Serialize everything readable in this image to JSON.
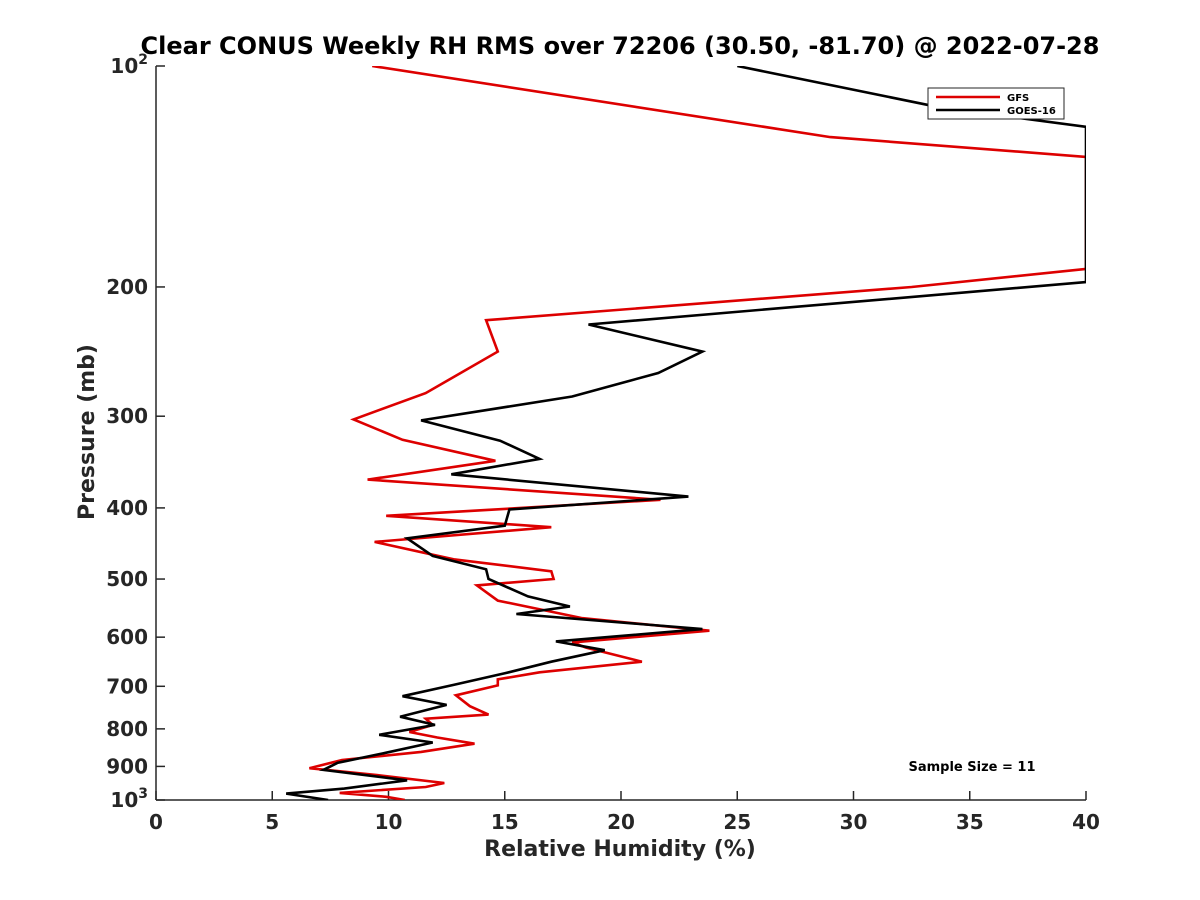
{
  "chart_data": {
    "type": "line",
    "title": "Clear CONUS Weekly RH RMS over 72206 (30.50, -81.70) @ 2022-07-28",
    "xlabel": "Relative Humidity (%)",
    "ylabel": "Pressure (mb)",
    "xlim": [
      0,
      40
    ],
    "ylim": [
      100,
      1000
    ],
    "yscale": "log",
    "y_reversed": true,
    "x_ticks": [
      0,
      5,
      10,
      15,
      20,
      25,
      30,
      35,
      40
    ],
    "x_tick_labels": [
      "0",
      "5",
      "10",
      "15",
      "20",
      "25",
      "30",
      "35",
      "40"
    ],
    "y_ticks": [
      100,
      200,
      300,
      400,
      500,
      600,
      700,
      800,
      900,
      1000
    ],
    "y_tick_labels": [
      {
        "base": "10",
        "exp": "2"
      },
      {
        "base": "200",
        "exp": ""
      },
      {
        "base": "300",
        "exp": ""
      },
      {
        "base": "400",
        "exp": ""
      },
      {
        "base": "500",
        "exp": ""
      },
      {
        "base": "600",
        "exp": ""
      },
      {
        "base": "700",
        "exp": ""
      },
      {
        "base": "800",
        "exp": ""
      },
      {
        "base": "900",
        "exp": ""
      },
      {
        "base": "10",
        "exp": "3"
      }
    ],
    "grid": false,
    "legend_position": "top-right",
    "annotation": "Sample Size = 11",
    "series": [
      {
        "name": "GFS",
        "color": "#dd0000",
        "points": [
          [
            9.3,
            100
          ],
          [
            29.0,
            125
          ],
          [
            40.0,
            133
          ],
          [
            40.0,
            189
          ],
          [
            32.5,
            200
          ],
          [
            14.2,
            222
          ],
          [
            14.7,
            245
          ],
          [
            11.6,
            279
          ],
          [
            8.5,
            303
          ],
          [
            10.6,
            323
          ],
          [
            14.6,
            345
          ],
          [
            9.1,
            366
          ],
          [
            21.7,
            390
          ],
          [
            9.9,
            410
          ],
          [
            17.0,
            425
          ],
          [
            9.4,
            445
          ],
          [
            12.8,
            470
          ],
          [
            17.0,
            488
          ],
          [
            17.1,
            500
          ],
          [
            13.8,
            510
          ],
          [
            14.7,
            535
          ],
          [
            18.3,
            565
          ],
          [
            23.8,
            588
          ],
          [
            17.9,
            610
          ],
          [
            18.5,
            620
          ],
          [
            20.9,
            648
          ],
          [
            16.5,
            670
          ],
          [
            14.7,
            685
          ],
          [
            14.7,
            698
          ],
          [
            12.9,
            720
          ],
          [
            13.5,
            745
          ],
          [
            14.3,
            765
          ],
          [
            11.6,
            775
          ],
          [
            11.9,
            790
          ],
          [
            10.9,
            808
          ],
          [
            12.1,
            822
          ],
          [
            13.7,
            838
          ],
          [
            11.4,
            860
          ],
          [
            8.0,
            882
          ],
          [
            6.6,
            905
          ],
          [
            9.5,
            925
          ],
          [
            12.4,
            948
          ],
          [
            11.6,
            960
          ],
          [
            7.9,
            978
          ],
          [
            9.9,
            990
          ],
          [
            10.7,
            1000
          ]
        ]
      },
      {
        "name": "GOES-16",
        "color": "#000000",
        "points": [
          [
            25.0,
            100
          ],
          [
            33.8,
            114
          ],
          [
            40.0,
            121
          ],
          [
            40.0,
            197
          ],
          [
            18.6,
            225
          ],
          [
            23.5,
            245
          ],
          [
            21.6,
            262
          ],
          [
            17.9,
            282
          ],
          [
            11.4,
            304
          ],
          [
            14.8,
            324
          ],
          [
            16.5,
            343
          ],
          [
            12.7,
            360
          ],
          [
            22.9,
            386
          ],
          [
            15.2,
            402
          ],
          [
            15.0,
            423
          ],
          [
            10.8,
            440
          ],
          [
            11.9,
            465
          ],
          [
            14.2,
            485
          ],
          [
            14.3,
            500
          ],
          [
            16.0,
            528
          ],
          [
            17.8,
            545
          ],
          [
            15.5,
            558
          ],
          [
            23.5,
            585
          ],
          [
            17.2,
            608
          ],
          [
            19.3,
            625
          ],
          [
            17.0,
            648
          ],
          [
            15.0,
            672
          ],
          [
            12.8,
            697
          ],
          [
            10.6,
            722
          ],
          [
            12.5,
            742
          ],
          [
            10.5,
            770
          ],
          [
            12.0,
            790
          ],
          [
            9.6,
            815
          ],
          [
            11.9,
            835
          ],
          [
            9.9,
            862
          ],
          [
            7.8,
            890
          ],
          [
            7.2,
            910
          ],
          [
            10.8,
            940
          ],
          [
            8.1,
            965
          ],
          [
            5.6,
            980
          ],
          [
            7.4,
            1000
          ]
        ]
      }
    ]
  }
}
